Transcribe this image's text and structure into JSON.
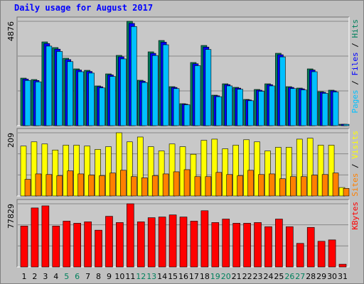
{
  "title": "Daily usage for August 2017",
  "title_color": "#0000ff",
  "categories": [
    "1",
    "2",
    "3",
    "4",
    "5",
    "6",
    "7",
    "8",
    "9",
    "10",
    "11",
    "12",
    "13",
    "14",
    "15",
    "16",
    "17",
    "18",
    "19",
    "20",
    "21",
    "22",
    "23",
    "24",
    "25",
    "26",
    "27",
    "28",
    "29",
    "30",
    "31"
  ],
  "category_colors": [
    "#000000",
    "#000000",
    "#000000",
    "#000000",
    "#00805c",
    "#00805c",
    "#000000",
    "#000000",
    "#000000",
    "#000000",
    "#000000",
    "#00805c",
    "#00805c",
    "#000000",
    "#000000",
    "#000000",
    "#000000",
    "#000000",
    "#00805c",
    "#00805c",
    "#000000",
    "#000000",
    "#000000",
    "#000000",
    "#000000",
    "#00805c",
    "#00805c",
    "#000000",
    "#000000",
    "#000000",
    "#000000"
  ],
  "legend_separator": " / ",
  "chart_data": [
    {
      "type": "bar",
      "ylim": [
        0,
        4876
      ],
      "yticks": [
        4876
      ],
      "series": [
        {
          "name": "Hits",
          "color": "#00805c",
          "values": [
            2222,
            2156,
            3914,
            3649,
            3151,
            2654,
            2587,
            1858,
            2421,
            3284,
            4876,
            2123,
            3450,
            3980,
            1824,
            1028,
            2952,
            3748,
            1426,
            1957,
            1791,
            1227,
            1692,
            1957,
            3383,
            1824,
            1758,
            2654,
            1592,
            1659,
            66
          ]
        },
        {
          "name": "Files",
          "color": "#0000ff",
          "values": [
            2178,
            2113,
            3836,
            3576,
            3088,
            2601,
            2535,
            1821,
            2373,
            3218,
            4778,
            2081,
            3381,
            3900,
            1788,
            1007,
            2893,
            3673,
            1397,
            1918,
            1755,
            1202,
            1658,
            1918,
            3315,
            1788,
            1723,
            2601,
            1560,
            1626,
            65
          ]
        },
        {
          "name": "Pages",
          "color": "#00c0ff",
          "values": [
            2111,
            2048,
            3718,
            3467,
            2993,
            2521,
            2458,
            1765,
            2300,
            3120,
            4632,
            2017,
            3278,
            3781,
            1733,
            977,
            2804,
            3561,
            1355,
            1859,
            1701,
            1166,
            1607,
            1859,
            3214,
            1733,
            1670,
            2521,
            1512,
            1576,
            63
          ]
        }
      ]
    },
    {
      "type": "bar",
      "ylim": [
        0,
        209
      ],
      "yticks": [
        209
      ],
      "series": [
        {
          "name": "Visits",
          "color": "#ffff00",
          "values": [
            165,
            179,
            172,
            152,
            168,
            168,
            165,
            154,
            163,
            209,
            179,
            195,
            163,
            149,
            172,
            163,
            138,
            184,
            188,
            156,
            168,
            186,
            179,
            149,
            161,
            161,
            188,
            191,
            168,
            168,
            28
          ]
        },
        {
          "name": "Sites",
          "color": "#ff8000",
          "values": [
            55,
            73,
            71,
            67,
            83,
            73,
            69,
            67,
            76,
            85,
            64,
            60,
            67,
            73,
            80,
            87,
            64,
            64,
            78,
            71,
            67,
            85,
            71,
            73,
            57,
            64,
            64,
            69,
            71,
            76,
            25
          ]
        }
      ]
    },
    {
      "type": "bar",
      "ylim": [
        0,
        77829
      ],
      "yticks": [
        77829
      ],
      "series": [
        {
          "name": "KBytes",
          "color": "#ff0000",
          "values": [
            50460,
            72700,
            75270,
            50460,
            56450,
            53880,
            55590,
            45330,
            62430,
            54730,
            77829,
            55590,
            60720,
            61570,
            64140,
            61570,
            56450,
            69280,
            54730,
            59010,
            53880,
            53880,
            54730,
            49600,
            59010,
            49600,
            29070,
            48750,
            31640,
            33350,
            3420
          ]
        }
      ]
    }
  ]
}
